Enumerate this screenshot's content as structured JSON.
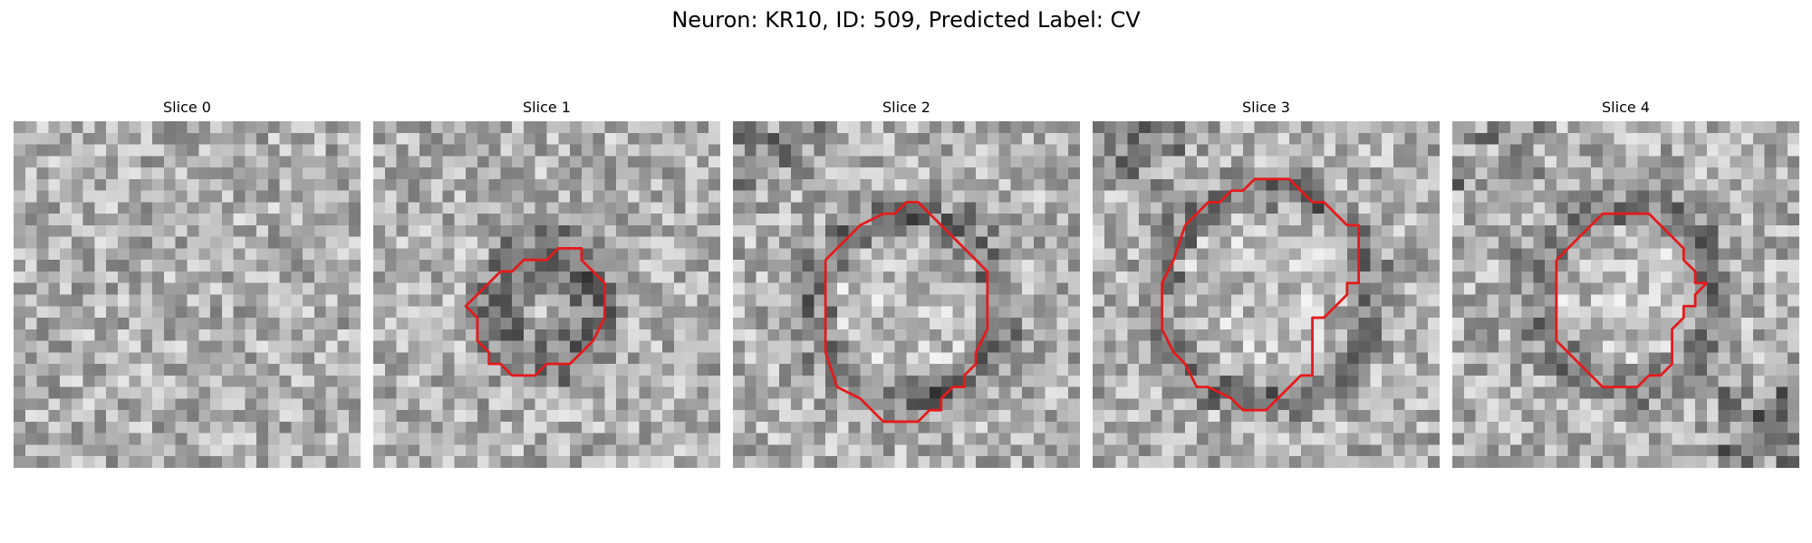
{
  "figure": {
    "title": "Neuron: KR10, ID: 509, Predicted Label: CV"
  },
  "panels": [
    {
      "title": "Slice 0",
      "has_outline": false,
      "outline_color": "#e41a1c",
      "seed": 101
    },
    {
      "title": "Slice 1",
      "has_outline": true,
      "outline_color": "#e41a1c",
      "seed": 202
    },
    {
      "title": "Slice 2",
      "has_outline": true,
      "outline_color": "#e41a1c",
      "seed": 303
    },
    {
      "title": "Slice 3",
      "has_outline": true,
      "outline_color": "#e41a1c",
      "seed": 404
    },
    {
      "title": "Slice 4",
      "has_outline": true,
      "outline_color": "#e41a1c",
      "seed": 505
    }
  ]
}
